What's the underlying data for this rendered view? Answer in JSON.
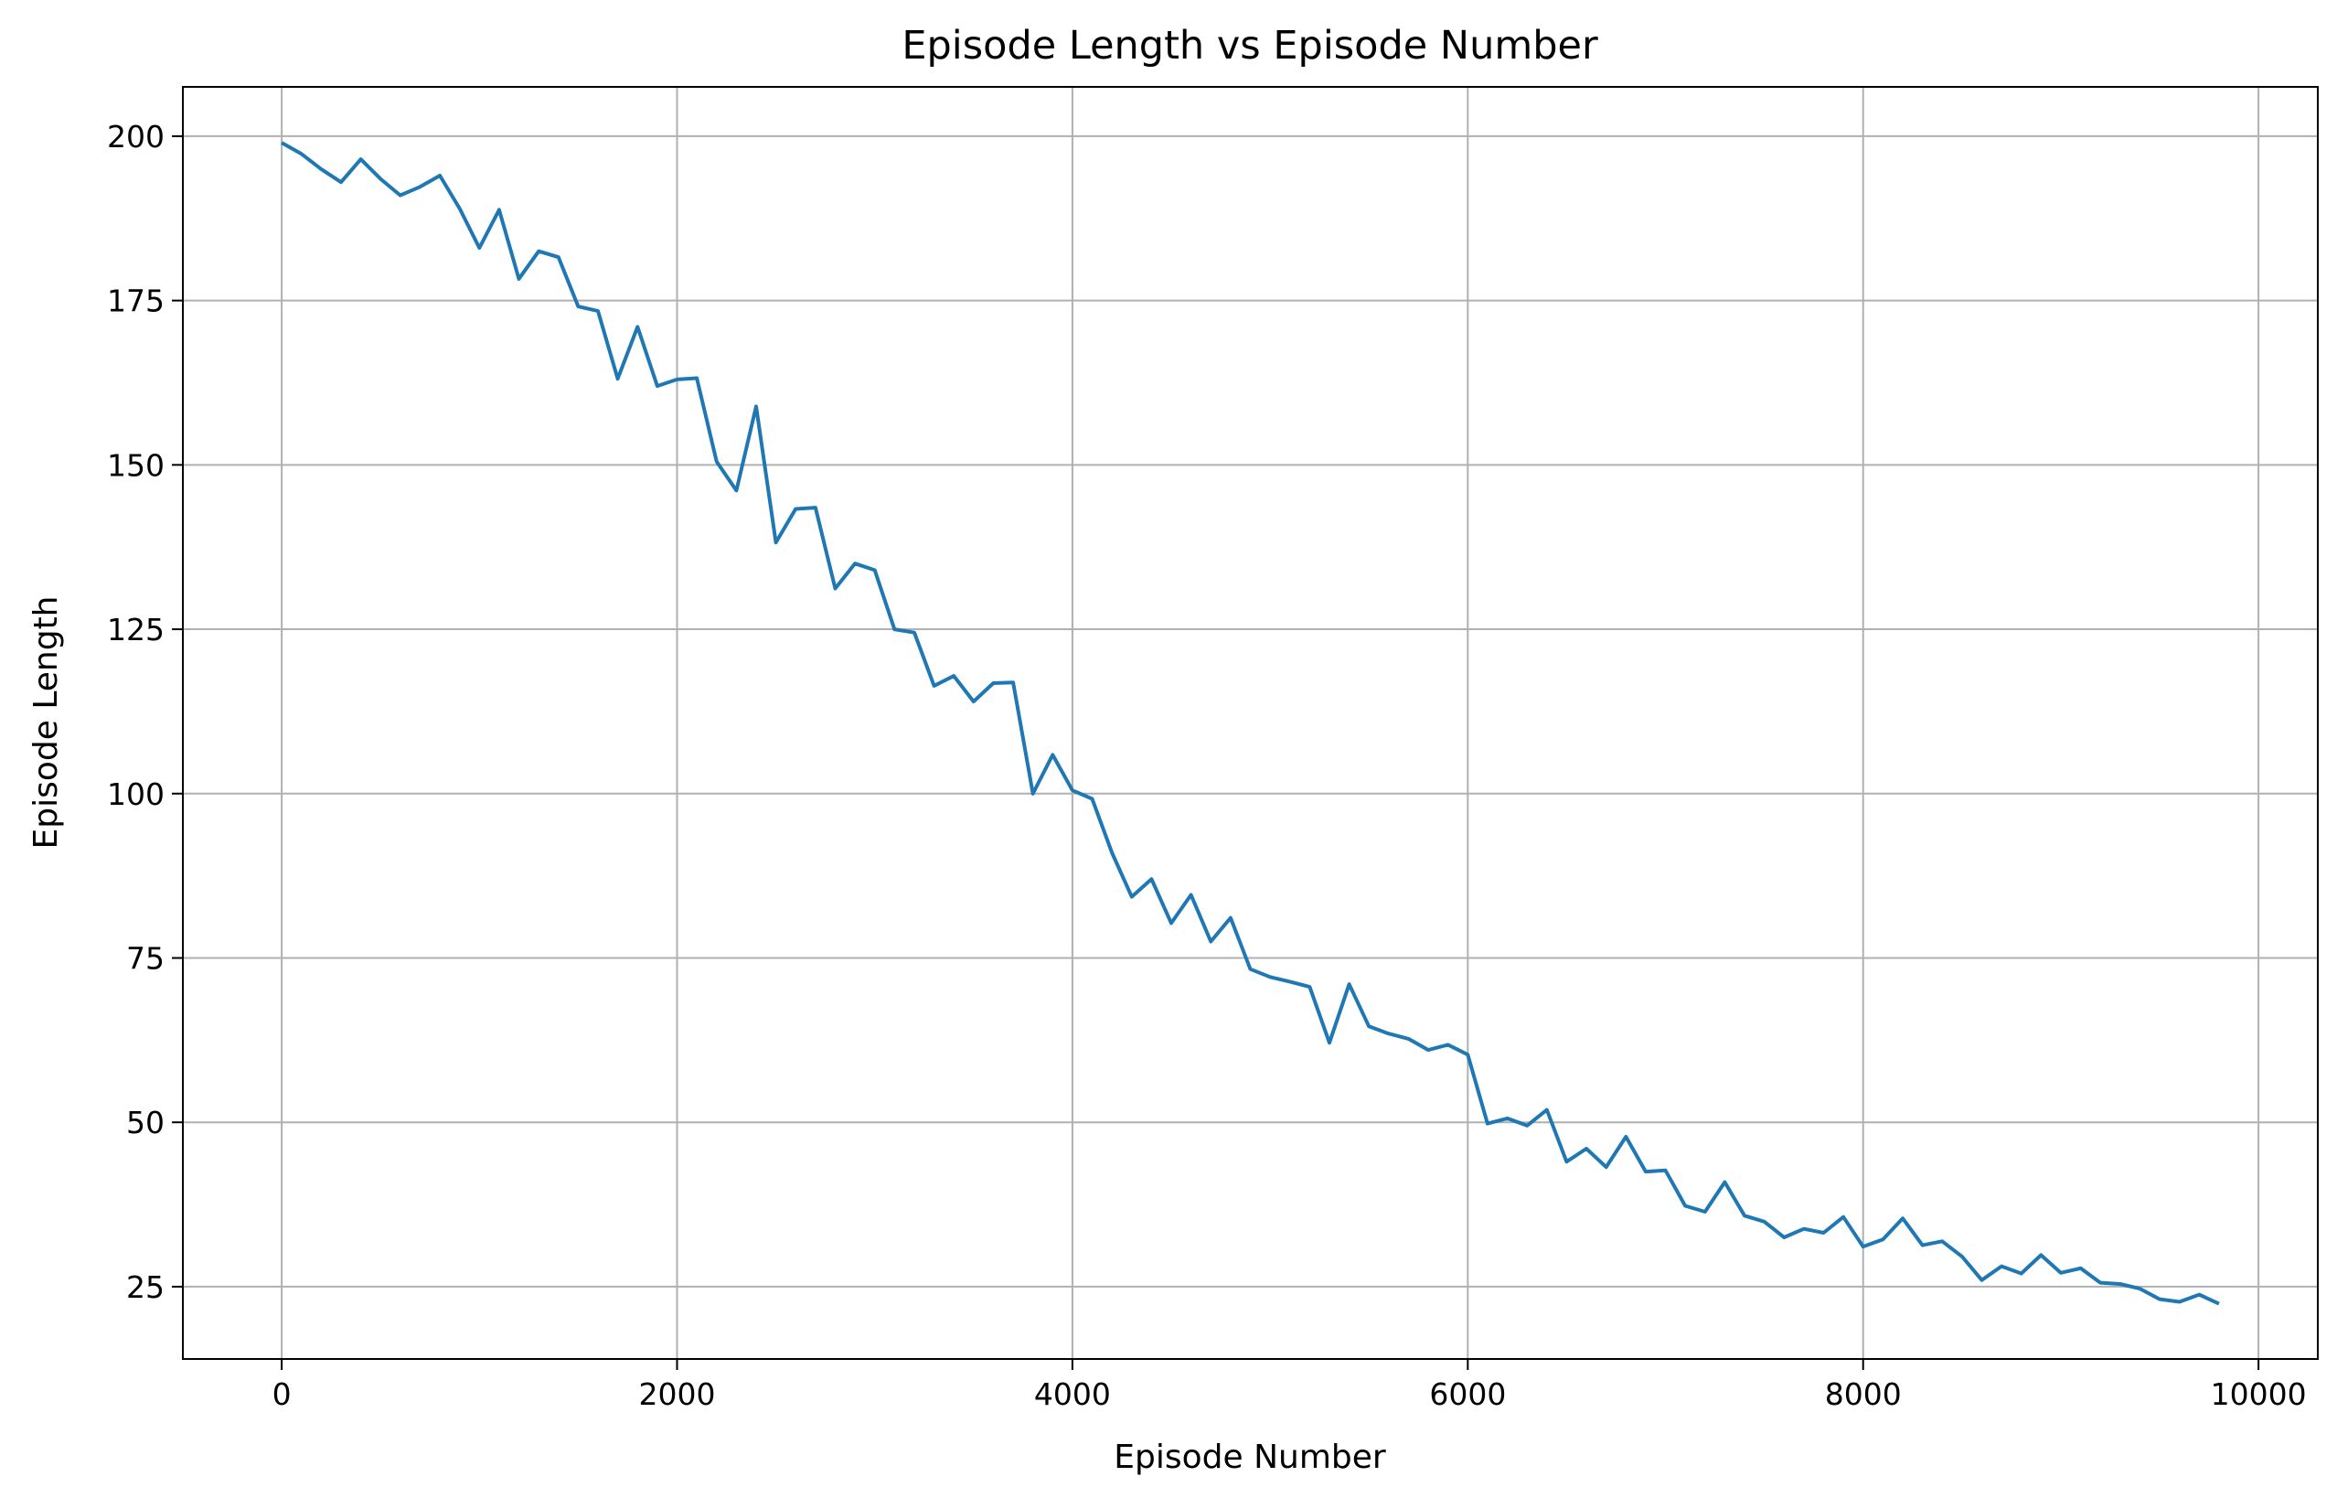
{
  "chart_data": {
    "type": "line",
    "title": "Episode Length vs Episode Number",
    "xlabel": "Episode Number",
    "ylabel": "Episode Length",
    "xlim": [
      -500,
      10300
    ],
    "ylim": [
      14,
      207.5
    ],
    "xticks": [
      0,
      2000,
      4000,
      6000,
      8000,
      10000
    ],
    "yticks": [
      25,
      50,
      75,
      100,
      125,
      150,
      175,
      200
    ],
    "grid": true,
    "legend": "none",
    "series": [
      {
        "color": "#1f77b4",
        "x": [
          0,
          100,
          200,
          300,
          400,
          500,
          600,
          700,
          800,
          900,
          1000,
          1100,
          1200,
          1300,
          1400,
          1500,
          1600,
          1700,
          1800,
          1900,
          2000,
          2100,
          2200,
          2300,
          2400,
          2500,
          2600,
          2700,
          2800,
          2900,
          3000,
          3100,
          3200,
          3300,
          3400,
          3500,
          3600,
          3700,
          3800,
          3900,
          4000,
          4100,
          4200,
          4300,
          4400,
          4500,
          4600,
          4700,
          4800,
          4900,
          5000,
          5100,
          5200,
          5300,
          5400,
          5500,
          5600,
          5700,
          5800,
          5900,
          6000,
          6100,
          6200,
          6300,
          6400,
          6500,
          6600,
          6700,
          6800,
          6900,
          7000,
          7100,
          7200,
          7300,
          7400,
          7500,
          7600,
          7700,
          7800,
          7900,
          8000,
          8100,
          8200,
          8300,
          8400,
          8500,
          8600,
          8700,
          8800,
          8900,
          9000,
          9100,
          9200,
          9300,
          9400,
          9500,
          9600,
          9700,
          9800
        ],
        "y": [
          199,
          197.3,
          195,
          193,
          196.5,
          193.5,
          191,
          192.3,
          194,
          189,
          183,
          188.8,
          178.3,
          182.5,
          181.6,
          174.1,
          173.4,
          163.1,
          171,
          162,
          163,
          163.2,
          150.5,
          146.1,
          158.9,
          138.2,
          143.3,
          143.5,
          131.2,
          135,
          134,
          125,
          124.5,
          116.4,
          117.9,
          114,
          116.8,
          116.9,
          100,
          105.9,
          100.5,
          99.2,
          91,
          84.3,
          87,
          80.3,
          84.6,
          77.5,
          81.1,
          73.3,
          72.1,
          71.4,
          70.6,
          62.1,
          71,
          64.6,
          63.5,
          62.7,
          61,
          61.8,
          60.3,
          49.8,
          50.6,
          49.5,
          51.9,
          44,
          46,
          43.2,
          47.8,
          42.5,
          42.7,
          37.3,
          36.4,
          40.9,
          35.8,
          34.9,
          32.5,
          33.8,
          33.2,
          35.6,
          31.1,
          32.2,
          35.4,
          31.3,
          31.9,
          29.6,
          26,
          28.1,
          27,
          29.8,
          27.1,
          27.8,
          25.6,
          25.4,
          24.7,
          23.1,
          22.7,
          23.8,
          22.4
        ]
      }
    ]
  }
}
